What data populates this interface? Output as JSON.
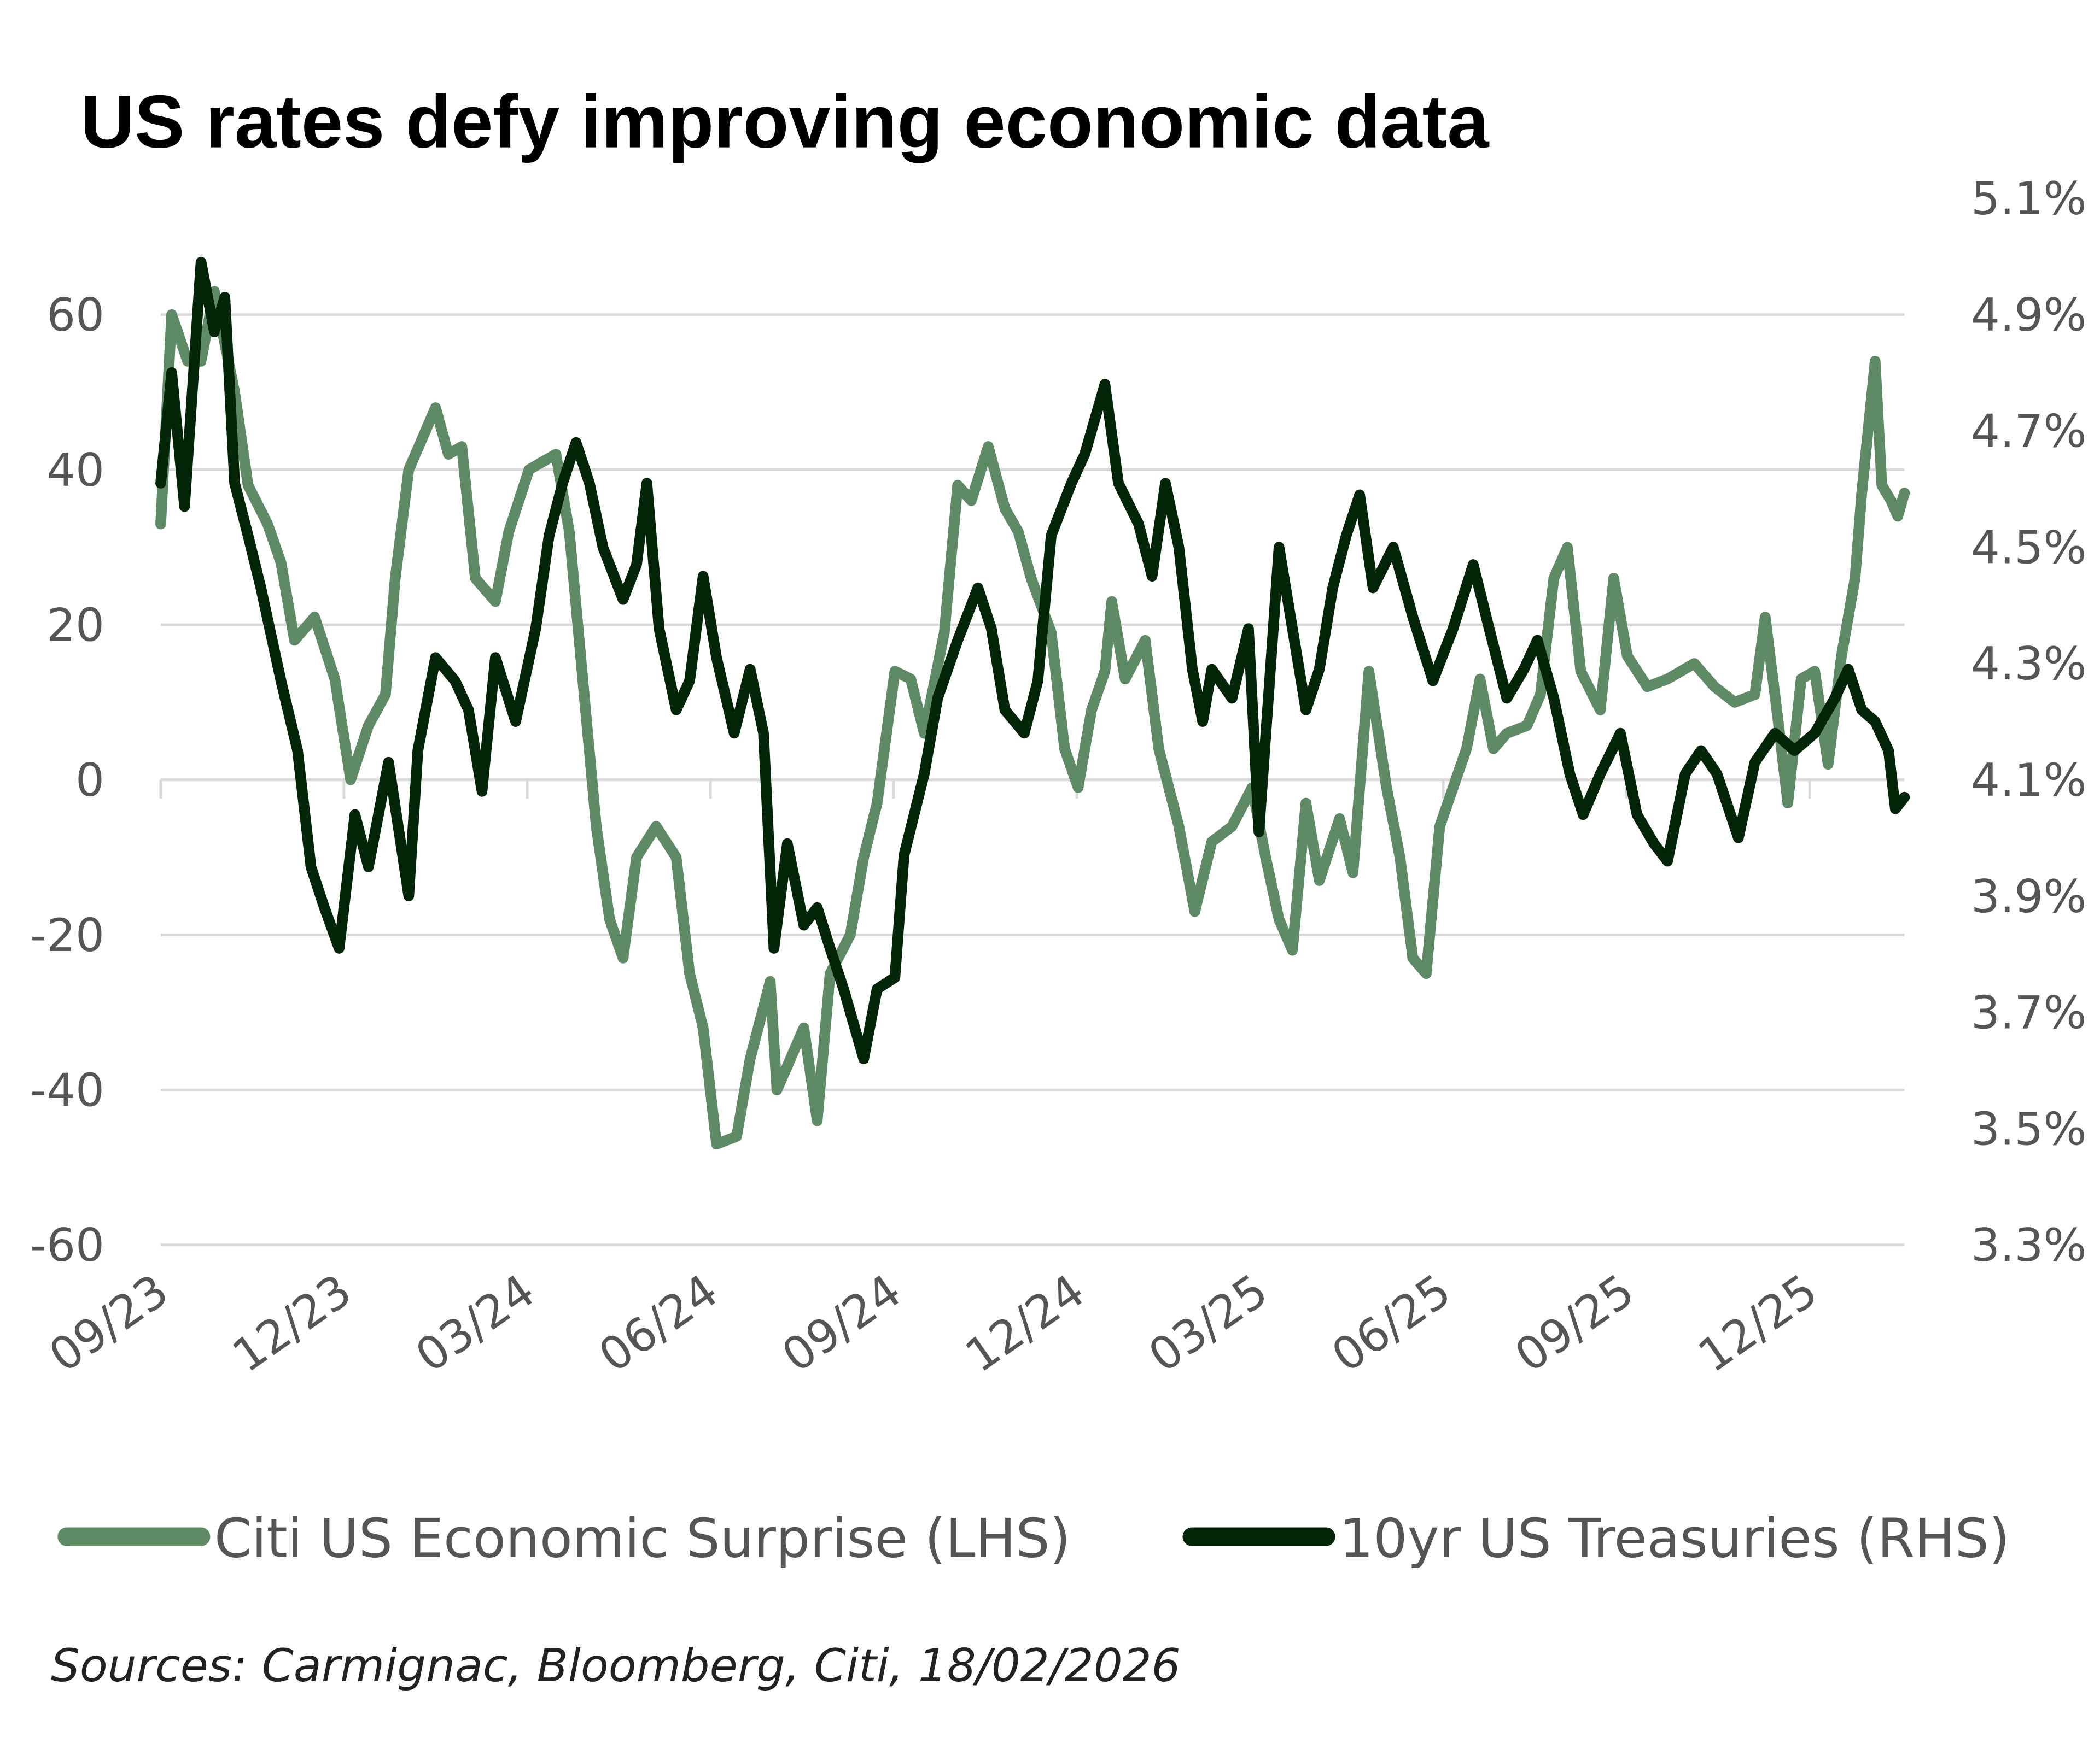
{
  "chart_data": {
    "type": "line",
    "title": "US rates defy improving economic data",
    "source": "Sources: Carmignac, Bloomberg, Citi, 18/02/2026",
    "xlabel": "",
    "x_unit": "months since 09/23",
    "xlim": [
      0,
      28.55
    ],
    "x_ticks": [
      0,
      3,
      6,
      9,
      12,
      15,
      18,
      21,
      24,
      27
    ],
    "x_tick_labels": [
      "09/23",
      "12/23",
      "03/24",
      "06/24",
      "09/24",
      "12/24",
      "03/25",
      "06/25",
      "09/25",
      "12/25"
    ],
    "y_left": {
      "label": "",
      "ylim": [
        -60,
        60
      ],
      "ticks": [
        -60,
        -40,
        -20,
        0,
        20,
        40,
        60
      ],
      "tick_labels": [
        "-60",
        "-40",
        "-20",
        "0",
        "20",
        "40",
        "60"
      ]
    },
    "y_right": {
      "label": "",
      "ylim": [
        3.3,
        5.1
      ],
      "ticks": [
        3.3,
        3.5,
        3.7,
        3.9,
        4.1,
        4.3,
        4.5,
        4.7,
        4.9,
        5.1
      ],
      "tick_labels": [
        "3.3%",
        "3.5%",
        "3.7%",
        "3.9%",
        "4.1%",
        "4.3%",
        "4.5%",
        "4.7%",
        "4.9%",
        "5.1%"
      ]
    },
    "grid": true,
    "legend_position": "bottom",
    "series": [
      {
        "name": "Citi US Economic Surprise (LHS)",
        "axis": "left",
        "color": "#5e8a66",
        "x": [
          0,
          0.18,
          0.44,
          0.66,
          0.88,
          1.21,
          1.43,
          1.75,
          1.97,
          2.19,
          2.52,
          2.85,
          3.11,
          3.4,
          3.68,
          3.84,
          4.06,
          4.28,
          4.5,
          4.71,
          4.93,
          5.15,
          5.48,
          5.7,
          6.03,
          6.25,
          6.47,
          6.69,
          6.91,
          7.13,
          7.35,
          7.57,
          7.79,
          8.11,
          8.44,
          8.66,
          8.88,
          9.1,
          9.43,
          9.65,
          9.98,
          10.09,
          10.31,
          10.53,
          10.75,
          10.96,
          11.29,
          11.51,
          11.73,
          12.02,
          12.28,
          12.5,
          12.83,
          13.05,
          13.27,
          13.55,
          13.82,
          14.04,
          14.25,
          14.58,
          14.8,
          15.02,
          15.24,
          15.46,
          15.57,
          15.79,
          16.12,
          16.34,
          16.67,
          16.93,
          17.21,
          17.54,
          17.87,
          18.09,
          18.31,
          18.53,
          18.75,
          18.97,
          19.3,
          19.52,
          19.78,
          20.07,
          20.29,
          20.5,
          20.72,
          20.94,
          21.16,
          21.38,
          21.6,
          21.82,
          22.04,
          22.37,
          22.59,
          22.81,
          23.03,
          23.25,
          23.57,
          23.79,
          24.01,
          24.34,
          24.67,
          24.89,
          25.11,
          25.44,
          25.77,
          26.1,
          26.27,
          26.49,
          26.64,
          26.86,
          27.08,
          27.3,
          27.52,
          27.74,
          27.85,
          28.07,
          28.18,
          28.33,
          28.44,
          28.55
        ],
        "values": [
          33,
          60,
          54,
          54,
          63,
          50,
          38,
          33,
          28,
          18,
          21,
          13,
          0,
          7,
          11,
          26,
          40,
          44,
          48,
          42,
          43,
          26,
          23,
          32,
          40,
          41,
          42,
          32,
          13,
          -6,
          -18,
          -23,
          -10,
          -6,
          -10,
          -25,
          -32,
          -47,
          -46,
          -36,
          -26,
          -40,
          -36,
          -32,
          -44,
          -25,
          -20,
          -10,
          -3,
          14,
          13,
          6,
          19,
          38,
          36,
          43,
          35,
          32,
          26,
          19,
          4,
          -1,
          9,
          14,
          23,
          13,
          18,
          4,
          -6,
          -17,
          -8,
          -6,
          -1,
          -10,
          -18,
          -22,
          -3,
          -13,
          -5,
          -12,
          14,
          -1,
          -10,
          -23,
          -25,
          -6,
          -1,
          4,
          13,
          4,
          6,
          7,
          11,
          26,
          30,
          14,
          9,
          26,
          16,
          12,
          13,
          14,
          15,
          12,
          10,
          11,
          21,
          7,
          -3,
          13,
          14,
          2,
          16,
          26,
          37,
          54,
          38,
          36,
          34,
          37
        ]
      },
      {
        "name": "10yr US Treasuries (RHS)",
        "axis": "right",
        "color": "#022507",
        "x": [
          0,
          0.18,
          0.39,
          0.66,
          0.88,
          1.05,
          1.21,
          1.43,
          1.64,
          1.97,
          2.24,
          2.46,
          2.68,
          2.92,
          3.18,
          3.4,
          3.73,
          4.06,
          4.21,
          4.5,
          4.82,
          5.04,
          5.26,
          5.48,
          5.81,
          6.14,
          6.36,
          6.58,
          6.8,
          7.02,
          7.24,
          7.57,
          7.79,
          7.96,
          8.16,
          8.44,
          8.66,
          8.88,
          9.1,
          9.39,
          9.65,
          9.87,
          10.04,
          10.26,
          10.53,
          10.75,
          10.96,
          11.18,
          11.51,
          11.73,
          12.02,
          12.17,
          12.5,
          12.72,
          13.05,
          13.38,
          13.6,
          13.82,
          14.14,
          14.36,
          14.58,
          14.91,
          15.13,
          15.46,
          15.68,
          16.01,
          16.23,
          16.45,
          16.67,
          16.89,
          17.06,
          17.21,
          17.54,
          17.81,
          17.98,
          18.31,
          18.53,
          18.75,
          18.97,
          19.19,
          19.41,
          19.63,
          19.85,
          20.18,
          20.5,
          20.83,
          21.16,
          21.49,
          21.75,
          22.04,
          22.32,
          22.54,
          22.81,
          23.07,
          23.29,
          23.57,
          23.9,
          24.17,
          24.45,
          24.67,
          24.96,
          25.22,
          25.48,
          25.83,
          26.1,
          26.43,
          26.75,
          27.08,
          27.41,
          27.63,
          27.85,
          28.07,
          28.29,
          28.4,
          28.55
        ],
        "values": [
          4.61,
          4.8,
          4.57,
          4.99,
          4.87,
          4.93,
          4.61,
          4.52,
          4.43,
          4.27,
          4.15,
          3.95,
          3.88,
          3.81,
          4.04,
          3.95,
          4.13,
          3.9,
          4.15,
          4.31,
          4.27,
          4.22,
          4.08,
          4.31,
          4.2,
          4.36,
          4.52,
          4.61,
          4.68,
          4.61,
          4.5,
          4.41,
          4.47,
          4.61,
          4.36,
          4.22,
          4.27,
          4.45,
          4.31,
          4.18,
          4.29,
          4.18,
          3.81,
          3.99,
          3.85,
          3.88,
          3.81,
          3.74,
          3.62,
          3.74,
          3.76,
          3.97,
          4.11,
          4.24,
          4.34,
          4.43,
          4.36,
          4.22,
          4.18,
          4.27,
          4.52,
          4.61,
          4.66,
          4.78,
          4.61,
          4.54,
          4.45,
          4.61,
          4.5,
          4.29,
          4.2,
          4.29,
          4.24,
          4.36,
          4.01,
          4.5,
          4.36,
          4.22,
          4.29,
          4.43,
          4.52,
          4.59,
          4.43,
          4.5,
          4.38,
          4.27,
          4.36,
          4.47,
          4.36,
          4.24,
          4.29,
          4.34,
          4.24,
          4.11,
          4.04,
          4.11,
          4.18,
          4.04,
          3.99,
          3.96,
          4.11,
          4.15,
          4.11,
          4.0,
          4.13,
          4.18,
          4.15,
          4.18,
          4.24,
          4.29,
          4.22,
          4.2,
          4.15,
          4.05,
          4.07
        ]
      }
    ]
  }
}
